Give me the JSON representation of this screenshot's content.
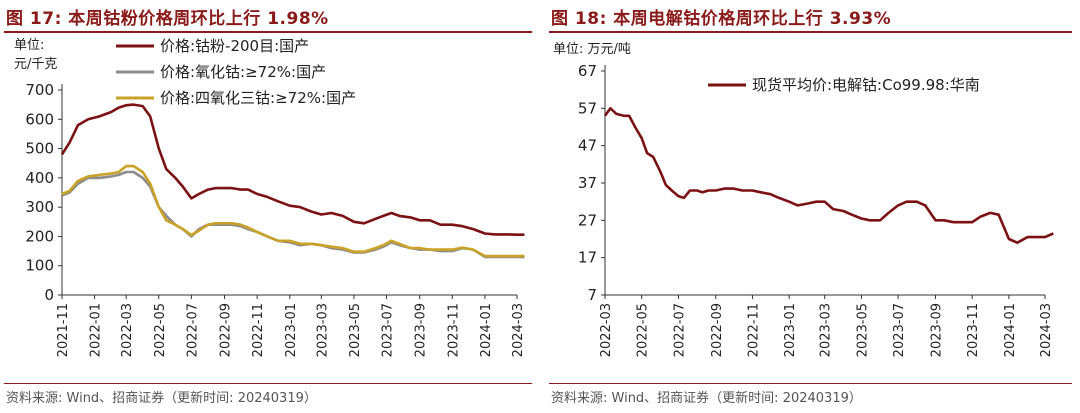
{
  "left": {
    "title": "图 17:  本周钴粉价格周环比上行 1.98%",
    "unit_line1": "单位:",
    "unit_line2": "元/千克",
    "source": "资料来源:  Wind、招商证券（更新时间:  20240319）"
  },
  "right": {
    "title": "图 18:  本周电解钴价格周环比上行 3.93%",
    "unit": "单位:  万元/吨",
    "source": "资料来源:  Wind、招商证券（更新时间:  20240319）"
  },
  "chart_data": [
    {
      "type": "line",
      "title": "图 17:  本周钴粉价格周环比上行 1.98%",
      "ylabel": "元/千克",
      "ylim": [
        0,
        700
      ],
      "yticks": [
        "0",
        "100",
        "200",
        "300",
        "400",
        "500",
        "600",
        "700"
      ],
      "xlim": [
        "2021-11",
        "2024-03"
      ],
      "xticks": [
        "2021-11",
        "2022-01",
        "2022-03",
        "2022-05",
        "2022-07",
        "2022-09",
        "2022-11",
        "2023-01",
        "2023-03",
        "2023-05",
        "2023-07",
        "2023-09",
        "2023-11",
        "2024-01",
        "2024-03"
      ],
      "legend_position": "top-left",
      "grid": false,
      "series": [
        {
          "name": "价格:钴粉-200目:国产",
          "color": "#7b1113",
          "x": [
            "2021-11-01",
            "2021-11-15",
            "2021-12-01",
            "2021-12-20",
            "2022-01-10",
            "2022-02-01",
            "2022-02-15",
            "2022-03-01",
            "2022-03-15",
            "2022-04-01",
            "2022-04-15",
            "2022-05-01",
            "2022-05-15",
            "2022-06-01",
            "2022-06-15",
            "2022-07-01",
            "2022-07-15",
            "2022-08-01",
            "2022-08-15",
            "2022-09-01",
            "2022-09-15",
            "2022-10-01",
            "2022-10-15",
            "2022-11-01",
            "2022-11-20",
            "2022-12-10",
            "2023-01-01",
            "2023-01-20",
            "2023-02-10",
            "2023-03-01",
            "2023-03-20",
            "2023-04-10",
            "2023-05-01",
            "2023-05-20",
            "2023-06-10",
            "2023-06-25",
            "2023-07-10",
            "2023-07-25",
            "2023-08-15",
            "2023-09-01",
            "2023-09-20",
            "2023-10-10",
            "2023-11-01",
            "2023-11-20",
            "2023-12-10",
            "2024-01-01",
            "2024-01-20",
            "2024-02-10",
            "2024-03-01",
            "2024-03-15"
          ],
          "values": [
            480,
            520,
            580,
            600,
            610,
            625,
            640,
            648,
            650,
            645,
            610,
            500,
            430,
            400,
            370,
            330,
            345,
            360,
            365,
            365,
            365,
            360,
            360,
            345,
            335,
            320,
            305,
            300,
            285,
            275,
            280,
            270,
            250,
            245,
            260,
            270,
            280,
            270,
            265,
            255,
            255,
            240,
            240,
            235,
            225,
            210,
            207,
            207,
            206,
            206
          ]
        },
        {
          "name": "价格:氧化钴:≥72%:国产",
          "color": "#8c8c8c",
          "x": [
            "2021-11-01",
            "2021-11-15",
            "2021-12-01",
            "2021-12-20",
            "2022-01-10",
            "2022-02-01",
            "2022-02-15",
            "2022-03-01",
            "2022-03-15",
            "2022-04-01",
            "2022-04-15",
            "2022-05-01",
            "2022-05-15",
            "2022-06-01",
            "2022-06-15",
            "2022-07-01",
            "2022-07-15",
            "2022-08-01",
            "2022-08-15",
            "2022-09-01",
            "2022-09-15",
            "2022-10-01",
            "2022-10-15",
            "2022-11-01",
            "2022-11-20",
            "2022-12-10",
            "2023-01-01",
            "2023-01-20",
            "2023-02-10",
            "2023-03-01",
            "2023-03-20",
            "2023-04-10",
            "2023-05-01",
            "2023-05-20",
            "2023-06-10",
            "2023-06-25",
            "2023-07-10",
            "2023-07-25",
            "2023-08-15",
            "2023-09-01",
            "2023-09-20",
            "2023-10-10",
            "2023-11-01",
            "2023-11-20",
            "2023-12-10",
            "2024-01-01",
            "2024-01-20",
            "2024-02-10",
            "2024-03-01",
            "2024-03-15"
          ],
          "values": [
            340,
            350,
            380,
            400,
            400,
            405,
            410,
            420,
            420,
            400,
            370,
            300,
            270,
            240,
            225,
            200,
            225,
            240,
            240,
            240,
            240,
            235,
            225,
            215,
            200,
            185,
            180,
            170,
            175,
            170,
            160,
            155,
            145,
            145,
            155,
            165,
            180,
            170,
            160,
            155,
            155,
            150,
            150,
            160,
            155,
            130,
            130,
            130,
            130,
            130
          ]
        },
        {
          "name": "价格:四氧化三钴:≥72%:国产",
          "color": "#c9a227",
          "x": [
            "2021-11-01",
            "2021-11-15",
            "2021-12-01",
            "2021-12-20",
            "2022-01-10",
            "2022-02-01",
            "2022-02-15",
            "2022-03-01",
            "2022-03-15",
            "2022-04-01",
            "2022-04-15",
            "2022-05-01",
            "2022-05-15",
            "2022-06-01",
            "2022-06-15",
            "2022-07-01",
            "2022-07-15",
            "2022-08-01",
            "2022-08-15",
            "2022-09-01",
            "2022-09-15",
            "2022-10-01",
            "2022-10-15",
            "2022-11-01",
            "2022-11-20",
            "2022-12-10",
            "2023-01-01",
            "2023-01-20",
            "2023-02-10",
            "2023-03-01",
            "2023-03-20",
            "2023-04-10",
            "2023-05-01",
            "2023-05-20",
            "2023-06-10",
            "2023-06-25",
            "2023-07-10",
            "2023-07-25",
            "2023-08-15",
            "2023-09-01",
            "2023-09-20",
            "2023-10-10",
            "2023-11-01",
            "2023-11-20",
            "2023-12-10",
            "2024-01-01",
            "2024-01-20",
            "2024-02-10",
            "2024-03-01",
            "2024-03-15"
          ],
          "values": [
            345,
            355,
            390,
            405,
            410,
            415,
            420,
            440,
            440,
            420,
            380,
            300,
            255,
            240,
            225,
            205,
            220,
            240,
            245,
            245,
            245,
            240,
            230,
            215,
            200,
            185,
            185,
            175,
            175,
            170,
            165,
            160,
            148,
            148,
            160,
            170,
            185,
            175,
            160,
            160,
            155,
            155,
            155,
            162,
            155,
            133,
            133,
            133,
            133,
            133
          ]
        }
      ]
    },
    {
      "type": "line",
      "title": "图 18:  本周电解钴价格周环比上行 3.93%",
      "ylabel": "万元/吨",
      "ylim": [
        7,
        67
      ],
      "yticks": [
        "7",
        "17",
        "27",
        "37",
        "47",
        "57",
        "67"
      ],
      "xlim": [
        "2022-03",
        "2024-03"
      ],
      "xticks": [
        "2022-03",
        "2022-05",
        "2022-07",
        "2022-09",
        "2022-11",
        "2023-01",
        "2023-03",
        "2023-05",
        "2023-07",
        "2023-09",
        "2023-11",
        "2024-01",
        "2024-03"
      ],
      "legend_position": "top-right",
      "grid": false,
      "series": [
        {
          "name": "现货平均价:电解钴:Co99.98:华南",
          "color": "#7b1113",
          "x": [
            "2022-03-01",
            "2022-03-10",
            "2022-03-20",
            "2022-04-01",
            "2022-04-10",
            "2022-04-20",
            "2022-05-01",
            "2022-05-10",
            "2022-05-20",
            "2022-06-01",
            "2022-06-10",
            "2022-06-20",
            "2022-07-01",
            "2022-07-10",
            "2022-07-20",
            "2022-08-01",
            "2022-08-10",
            "2022-08-20",
            "2022-09-01",
            "2022-09-15",
            "2022-10-01",
            "2022-10-15",
            "2022-11-01",
            "2022-11-15",
            "2022-12-01",
            "2022-12-15",
            "2023-01-01",
            "2023-01-15",
            "2023-02-01",
            "2023-02-15",
            "2023-03-01",
            "2023-03-15",
            "2023-04-01",
            "2023-04-15",
            "2023-05-01",
            "2023-05-15",
            "2023-06-01",
            "2023-06-15",
            "2023-07-01",
            "2023-07-15",
            "2023-08-01",
            "2023-08-15",
            "2023-09-01",
            "2023-09-15",
            "2023-10-01",
            "2023-10-15",
            "2023-11-01",
            "2023-11-15",
            "2023-12-01",
            "2023-12-15",
            "2024-01-01",
            "2024-01-15",
            "2024-02-01",
            "2024-02-15",
            "2024-03-01",
            "2024-03-15"
          ],
          "values": [
            55,
            57,
            55.5,
            55,
            55,
            52,
            49,
            45,
            44,
            40,
            36.5,
            35,
            33.5,
            33,
            35,
            35,
            34.5,
            35,
            35,
            35.5,
            35.5,
            35,
            35,
            34.5,
            34,
            33,
            32,
            31,
            31.5,
            32,
            32,
            30,
            29.5,
            28.5,
            27.5,
            27,
            27,
            29,
            31,
            32,
            32,
            31,
            27,
            27,
            26.5,
            26.5,
            26.5,
            28,
            29,
            28.5,
            22,
            21,
            22.5,
            22.5,
            22.5,
            23.5
          ]
        }
      ]
    }
  ]
}
